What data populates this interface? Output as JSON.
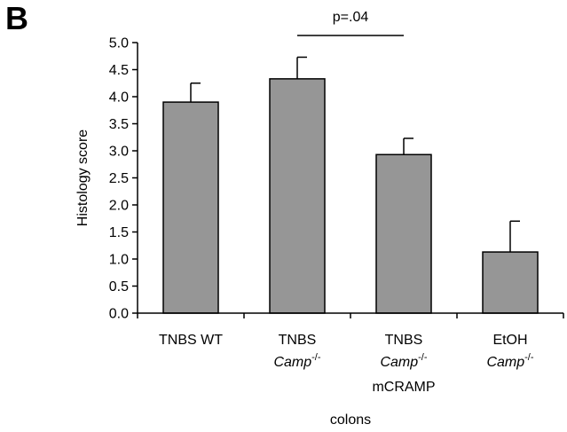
{
  "panel_label": "B",
  "chart_data": {
    "type": "bar",
    "title": "",
    "xlabel": "colons",
    "ylabel": "Histology score",
    "ylim": [
      0,
      5
    ],
    "yticks": [
      "0.0",
      "0.5",
      "1.0",
      "1.5",
      "2.0",
      "2.5",
      "3.0",
      "3.5",
      "4.0",
      "4.5",
      "5.0"
    ],
    "categories": [
      {
        "line1": "TNBS WT",
        "line2_main": "",
        "line2_sup": "",
        "line3": ""
      },
      {
        "line1": "TNBS",
        "line2_main": "Camp",
        "line2_sup": "-/-",
        "line3": ""
      },
      {
        "line1": "TNBS",
        "line2_main": "Camp",
        "line2_sup": "-/-",
        "line3": "mCRAMP"
      },
      {
        "line1": "EtOH",
        "line2_main": "Camp",
        "line2_sup": "-/-",
        "line3": ""
      }
    ],
    "values": [
      3.9,
      4.33,
      2.93,
      1.13
    ],
    "errors": [
      0.35,
      0.4,
      0.3,
      0.57
    ],
    "bar_color": "#969696",
    "grid": false,
    "annotation": {
      "text": "p=.04",
      "from_index": 1,
      "to_index": 2
    }
  }
}
